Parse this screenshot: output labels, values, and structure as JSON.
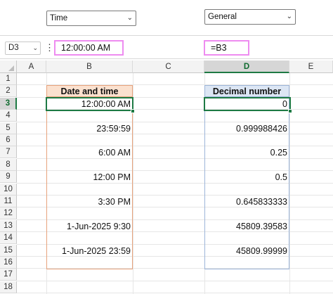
{
  "format_dropdowns": {
    "left": {
      "value": "Time"
    },
    "right": {
      "value": "General"
    }
  },
  "formula_bar": {
    "name_box": "D3",
    "left_value": "12:00:00 AM",
    "right_value": "=B3"
  },
  "columns": [
    "A",
    "B",
    "C",
    "D",
    "E"
  ],
  "selected_column": "D",
  "rows": [
    "1",
    "2",
    "3",
    "4",
    "5",
    "6",
    "7",
    "8",
    "9",
    "10",
    "11",
    "12",
    "13",
    "14",
    "15",
    "16",
    "17",
    "18"
  ],
  "selected_row": "3",
  "table": {
    "header_b": "Date and time",
    "header_d": "Decimal number",
    "rows": [
      {
        "row": "3",
        "b": "12:00:00 AM",
        "d": "0"
      },
      {
        "row": "5",
        "b": "23:59:59",
        "d": "0.999988426"
      },
      {
        "row": "7",
        "b": "6:00 AM",
        "d": "0.25"
      },
      {
        "row": "9",
        "b": "12:00 PM",
        "d": "0.5"
      },
      {
        "row": "11",
        "b": "3:30 PM",
        "d": "0.645833333"
      },
      {
        "row": "13",
        "b": "1-Jun-2025 9:30",
        "d": "45809.39583"
      },
      {
        "row": "15",
        "b": "1-Jun-2025 23:59",
        "d": "45809.99999"
      }
    ]
  },
  "colors": {
    "accent_green": "#1e7a44",
    "highlight_pink": "#ee8cf0",
    "orange_border": "#e8a37d",
    "orange_fill": "#fbe1cf",
    "blue_border": "#9db5d9",
    "blue_fill": "#dce6f4"
  }
}
